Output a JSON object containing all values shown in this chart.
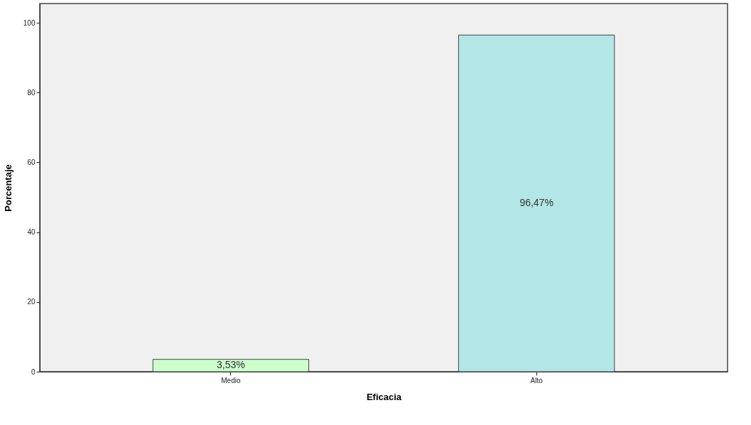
{
  "chart_data": {
    "type": "bar",
    "xlabel": "Eficacia",
    "ylabel": "Porcentaje",
    "categories": [
      "Medio",
      "Alto"
    ],
    "values": [
      3.53,
      96.47
    ],
    "colors": [
      "#ccffcc",
      "#b3e6e6"
    ],
    "value_labels": [
      "3,53%",
      "96,47%"
    ],
    "ylim": [
      0,
      105.5
    ],
    "yticks": [
      0,
      20,
      40,
      60,
      80,
      100
    ],
    "grid": false
  }
}
